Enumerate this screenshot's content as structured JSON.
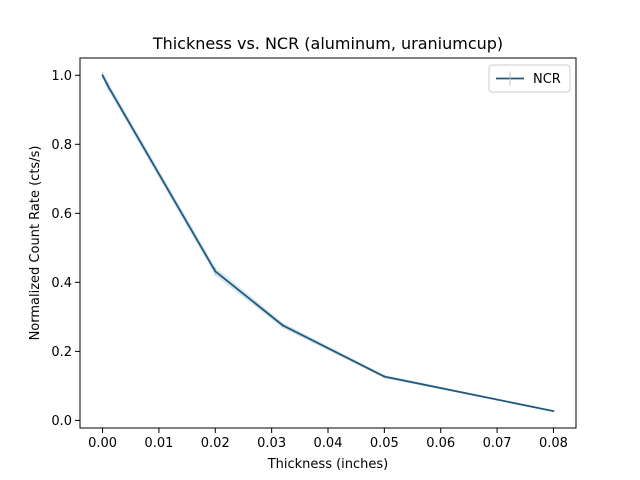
{
  "chart_data": {
    "type": "line",
    "title": "Thickness vs. NCR (aluminum, uraniumcup)",
    "xlabel": "Thickness (inches)",
    "ylabel": "Normalized Count Rate (cts/s)",
    "xlim": [
      -0.004,
      0.084
    ],
    "ylim": [
      -0.022,
      1.05
    ],
    "xticks": [
      0.0,
      0.01,
      0.02,
      0.03,
      0.04,
      0.05,
      0.06,
      0.07,
      0.08
    ],
    "xtick_labels": [
      "0.00",
      "0.01",
      "0.02",
      "0.03",
      "0.04",
      "0.05",
      "0.06",
      "0.07",
      "0.08"
    ],
    "yticks": [
      0.0,
      0.2,
      0.4,
      0.6,
      0.8,
      1.0
    ],
    "ytick_labels": [
      "0.0",
      "0.2",
      "0.4",
      "0.6",
      "0.8",
      "1.0"
    ],
    "grid": false,
    "legend_position": "top-right",
    "series": [
      {
        "name": "NCR",
        "color": "#1f5a7a",
        "x": [
          0.0,
          0.001,
          0.02,
          0.032,
          0.05,
          0.08
        ],
        "y": [
          1.0,
          0.968,
          0.432,
          0.275,
          0.127,
          0.027
        ],
        "yerr": [
          0.01,
          0.012,
          0.012,
          0.008,
          0.005,
          0.002
        ]
      }
    ]
  }
}
